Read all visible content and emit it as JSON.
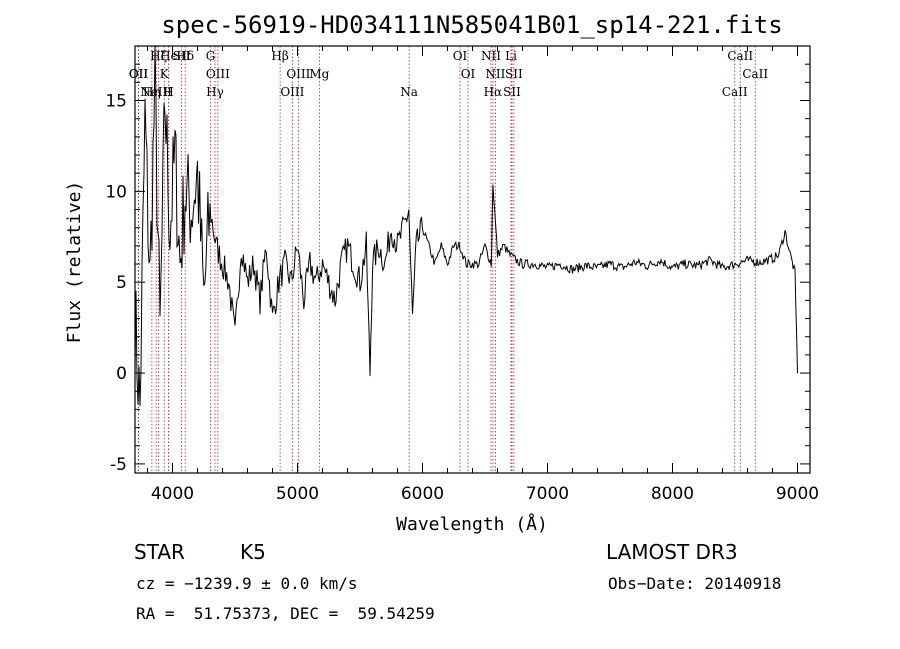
{
  "chart_data": {
    "type": "line",
    "title": "spec-56919-HD034111N585041B01_sp14-221.fits",
    "xlabel": "Wavelength (Å)",
    "ylabel": "Flux (relative)",
    "xlim": [
      3700,
      9100
    ],
    "ylim": [
      -5.5,
      18
    ],
    "xticks": [
      4000,
      5000,
      6000,
      7000,
      8000,
      9000
    ],
    "yticks": [
      -5,
      0,
      5,
      10,
      15
    ],
    "grid": false,
    "series": [
      {
        "name": "spectrum",
        "x": [
          3700,
          3740,
          3780,
          3820,
          3860,
          3900,
          3940,
          3980,
          4020,
          4060,
          4100,
          4150,
          4200,
          4250,
          4300,
          4350,
          4400,
          4450,
          4500,
          4550,
          4600,
          4650,
          4700,
          4750,
          4800,
          4850,
          4900,
          4950,
          5000,
          5050,
          5100,
          5150,
          5200,
          5250,
          5300,
          5350,
          5400,
          5450,
          5500,
          5550,
          5580,
          5600,
          5650,
          5700,
          5750,
          5800,
          5850,
          5890,
          5920,
          5950,
          6000,
          6050,
          6100,
          6150,
          6200,
          6250,
          6300,
          6350,
          6400,
          6450,
          6500,
          6550,
          6563,
          6600,
          6650,
          6700,
          6750,
          6800,
          6900,
          7000,
          7100,
          7200,
          7300,
          7400,
          7500,
          7600,
          7700,
          7800,
          7900,
          8000,
          8100,
          8200,
          8300,
          8400,
          8500,
          8600,
          8700,
          8800,
          8850,
          8900,
          8950,
          8980,
          9000
        ],
        "values": [
          3,
          -2,
          14,
          5,
          16,
          2,
          15,
          8,
          12,
          6,
          10,
          9,
          11,
          4,
          9,
          7,
          6,
          5,
          2,
          7,
          5,
          6,
          4,
          7,
          3,
          5,
          6,
          5,
          7,
          4,
          6,
          5,
          6,
          5,
          4,
          6,
          7,
          6,
          5,
          7,
          0,
          6,
          7,
          6,
          8,
          7,
          8,
          9,
          3,
          7,
          8,
          7,
          6,
          7,
          6,
          7,
          7,
          6,
          6,
          6,
          7,
          6,
          10.5,
          6.5,
          7,
          6.5,
          6.2,
          6,
          6,
          5.8,
          6,
          5.7,
          5.9,
          5.8,
          6,
          5.8,
          6.1,
          5.9,
          6.2,
          5.8,
          6,
          5.9,
          6.2,
          5.8,
          6,
          6.2,
          6.1,
          6.3,
          6.5,
          7.8,
          6.3,
          5.5,
          0
        ]
      }
    ],
    "lines": [
      {
        "label": "Hϵ",
        "x": 3970
      },
      {
        "label": "K",
        "x": 3934
      },
      {
        "label": "H",
        "x": 3969
      },
      {
        "label": "Hδ",
        "x": 4102
      },
      {
        "label": "OII",
        "x": 3727
      },
      {
        "label": "NeIII",
        "x": 3869
      },
      {
        "label": "SII",
        "x": 4072
      },
      {
        "label": "OII",
        "x": 3729
      },
      {
        "label": "Hη",
        "x": 3835
      },
      {
        "label": "Hζ",
        "x": 3889
      },
      {
        "label": "OIII",
        "x": 4363
      },
      {
        "label": "Hγ",
        "x": 4340
      },
      {
        "label": "G",
        "x": 4304
      },
      {
        "label": "OIII",
        "x": 5007
      },
      {
        "label": "OIII",
        "x": 4959
      },
      {
        "label": "Hβ",
        "x": 4861
      },
      {
        "label": "Mg",
        "x": 5175
      },
      {
        "label": "Na",
        "x": 5893
      },
      {
        "label": "OI",
        "x": 6300
      },
      {
        "label": "OI",
        "x": 6364
      },
      {
        "label": "Hα",
        "x": 6563
      },
      {
        "label": "NII",
        "x": 6548
      },
      {
        "label": "NII",
        "x": 6583
      },
      {
        "label": "SII",
        "x": 6716
      },
      {
        "label": "Li",
        "x": 6708
      },
      {
        "label": "SII",
        "x": 6731
      },
      {
        "label": "CaII",
        "x": 8498
      },
      {
        "label": "CaII",
        "x": 8542
      },
      {
        "label": "CaII",
        "x": 8662
      }
    ]
  },
  "info": {
    "class_label": "STAR",
    "subclass": "K5",
    "survey": "LAMOST DR3",
    "cz": "cz = −1239.9 ± 0.0 km/s",
    "obs_date": "Obs−Date: 20140918",
    "coords": "RA =  51.75373, DEC =  59.54259"
  }
}
